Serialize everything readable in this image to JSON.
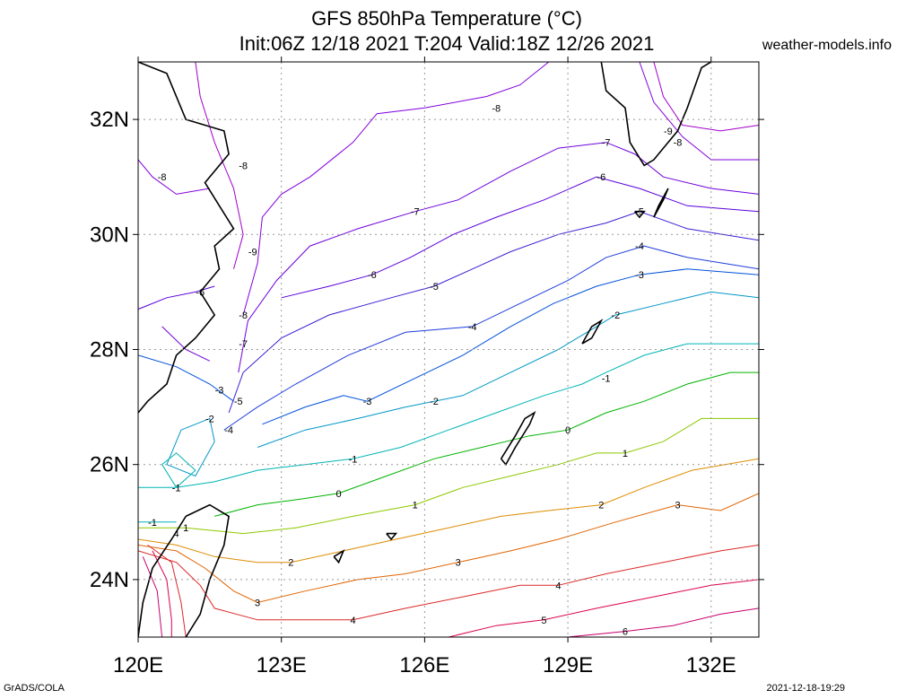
{
  "header": {
    "title_line1": "GFS 850hPa Temperature (°C)",
    "title_line2": "Init:06Z 12/18 2021 T:204 Valid:18Z 12/26 2021",
    "site": "weather-models.info"
  },
  "footer": {
    "software": "GrADS/COLA",
    "timestamp": "2021-12-18-19:29"
  },
  "map": {
    "projection": "lat-lon",
    "lon_range": [
      120,
      133
    ],
    "lat_range": [
      23,
      33
    ],
    "lon_ticks": [
      "120E",
      "123E",
      "126E",
      "129E",
      "132E"
    ],
    "lat_ticks": [
      "24N",
      "26N",
      "28N",
      "30N",
      "32N"
    ],
    "grid": "dotted",
    "contour_labels": [
      {
        "text": "-8",
        "lon": 127.5,
        "lat": 32.2
      },
      {
        "text": "-9",
        "lon": 131.1,
        "lat": 31.8
      },
      {
        "text": "-8",
        "lon": 131.3,
        "lat": 31.6
      },
      {
        "text": "-7",
        "lon": 129.8,
        "lat": 31.6
      },
      {
        "text": "-8",
        "lon": 122.2,
        "lat": 31.2
      },
      {
        "text": "-8",
        "lon": 120.5,
        "lat": 31.0
      },
      {
        "text": "-6",
        "lon": 129.7,
        "lat": 31.0
      },
      {
        "text": "-5",
        "lon": 130.5,
        "lat": 30.4
      },
      {
        "text": "-7",
        "lon": 125.8,
        "lat": 30.4
      },
      {
        "text": "-4",
        "lon": 130.5,
        "lat": 29.8
      },
      {
        "text": "-9",
        "lon": 122.4,
        "lat": 29.7
      },
      {
        "text": "-6",
        "lon": 124.9,
        "lat": 29.3
      },
      {
        "text": "-3",
        "lon": 130.5,
        "lat": 29.3
      },
      {
        "text": "-5",
        "lon": 126.2,
        "lat": 29.1
      },
      {
        "text": "-6",
        "lon": 121.3,
        "lat": 29.0
      },
      {
        "text": "-2",
        "lon": 130.0,
        "lat": 28.6
      },
      {
        "text": "-8",
        "lon": 122.2,
        "lat": 28.6
      },
      {
        "text": "-4",
        "lon": 127.0,
        "lat": 28.4
      },
      {
        "text": "-7",
        "lon": 122.2,
        "lat": 28.1
      },
      {
        "text": "-1",
        "lon": 129.8,
        "lat": 27.5
      },
      {
        "text": "-3",
        "lon": 121.7,
        "lat": 27.3
      },
      {
        "text": "-3",
        "lon": 124.8,
        "lat": 27.1
      },
      {
        "text": "-2",
        "lon": 126.2,
        "lat": 27.1
      },
      {
        "text": "-5",
        "lon": 122.1,
        "lat": 27.1
      },
      {
        "text": "-2",
        "lon": 121.5,
        "lat": 26.8
      },
      {
        "text": "-4",
        "lon": 121.9,
        "lat": 26.6
      },
      {
        "text": "0",
        "lon": 129.0,
        "lat": 26.6
      },
      {
        "text": "1",
        "lon": 130.2,
        "lat": 26.2
      },
      {
        "text": "-1",
        "lon": 124.5,
        "lat": 26.1
      },
      {
        "text": "-1",
        "lon": 120.8,
        "lat": 25.6
      },
      {
        "text": "0",
        "lon": 124.2,
        "lat": 25.5
      },
      {
        "text": "2",
        "lon": 129.7,
        "lat": 25.3
      },
      {
        "text": "1",
        "lon": 125.8,
        "lat": 25.3
      },
      {
        "text": "3",
        "lon": 131.3,
        "lat": 25.3
      },
      {
        "text": "-1",
        "lon": 120.3,
        "lat": 25.0
      },
      {
        "text": "1",
        "lon": 121.0,
        "lat": 24.9
      },
      {
        "text": "4",
        "lon": 120.8,
        "lat": 24.8
      },
      {
        "text": "2",
        "lon": 123.2,
        "lat": 24.3
      },
      {
        "text": "3",
        "lon": 126.7,
        "lat": 24.3
      },
      {
        "text": "4",
        "lon": 128.8,
        "lat": 23.9
      },
      {
        "text": "3",
        "lon": 122.5,
        "lat": 23.6
      },
      {
        "text": "4",
        "lon": 124.5,
        "lat": 23.3
      },
      {
        "text": "5",
        "lon": 128.5,
        "lat": 23.3
      },
      {
        "text": "6",
        "lon": 130.2,
        "lat": 23.1
      }
    ],
    "colors": {
      "-9": "#a000c8",
      "-8": "#8200dc",
      "-7": "#6e00dc",
      "-6": "#5a00dc",
      "-5": "#3c1ed2",
      "-4": "#1e3cdc",
      "-3": "#0050dc",
      "-2": "#0096c8",
      "-1": "#00b4b4",
      "0": "#00b400",
      "1": "#8cc800",
      "2": "#dc8c00",
      "3": "#e06400",
      "4": "#dc2828",
      "5": "#dc0050",
      "6": "#c8006e",
      "coast": "#000000",
      "grid": "#999999"
    }
  }
}
